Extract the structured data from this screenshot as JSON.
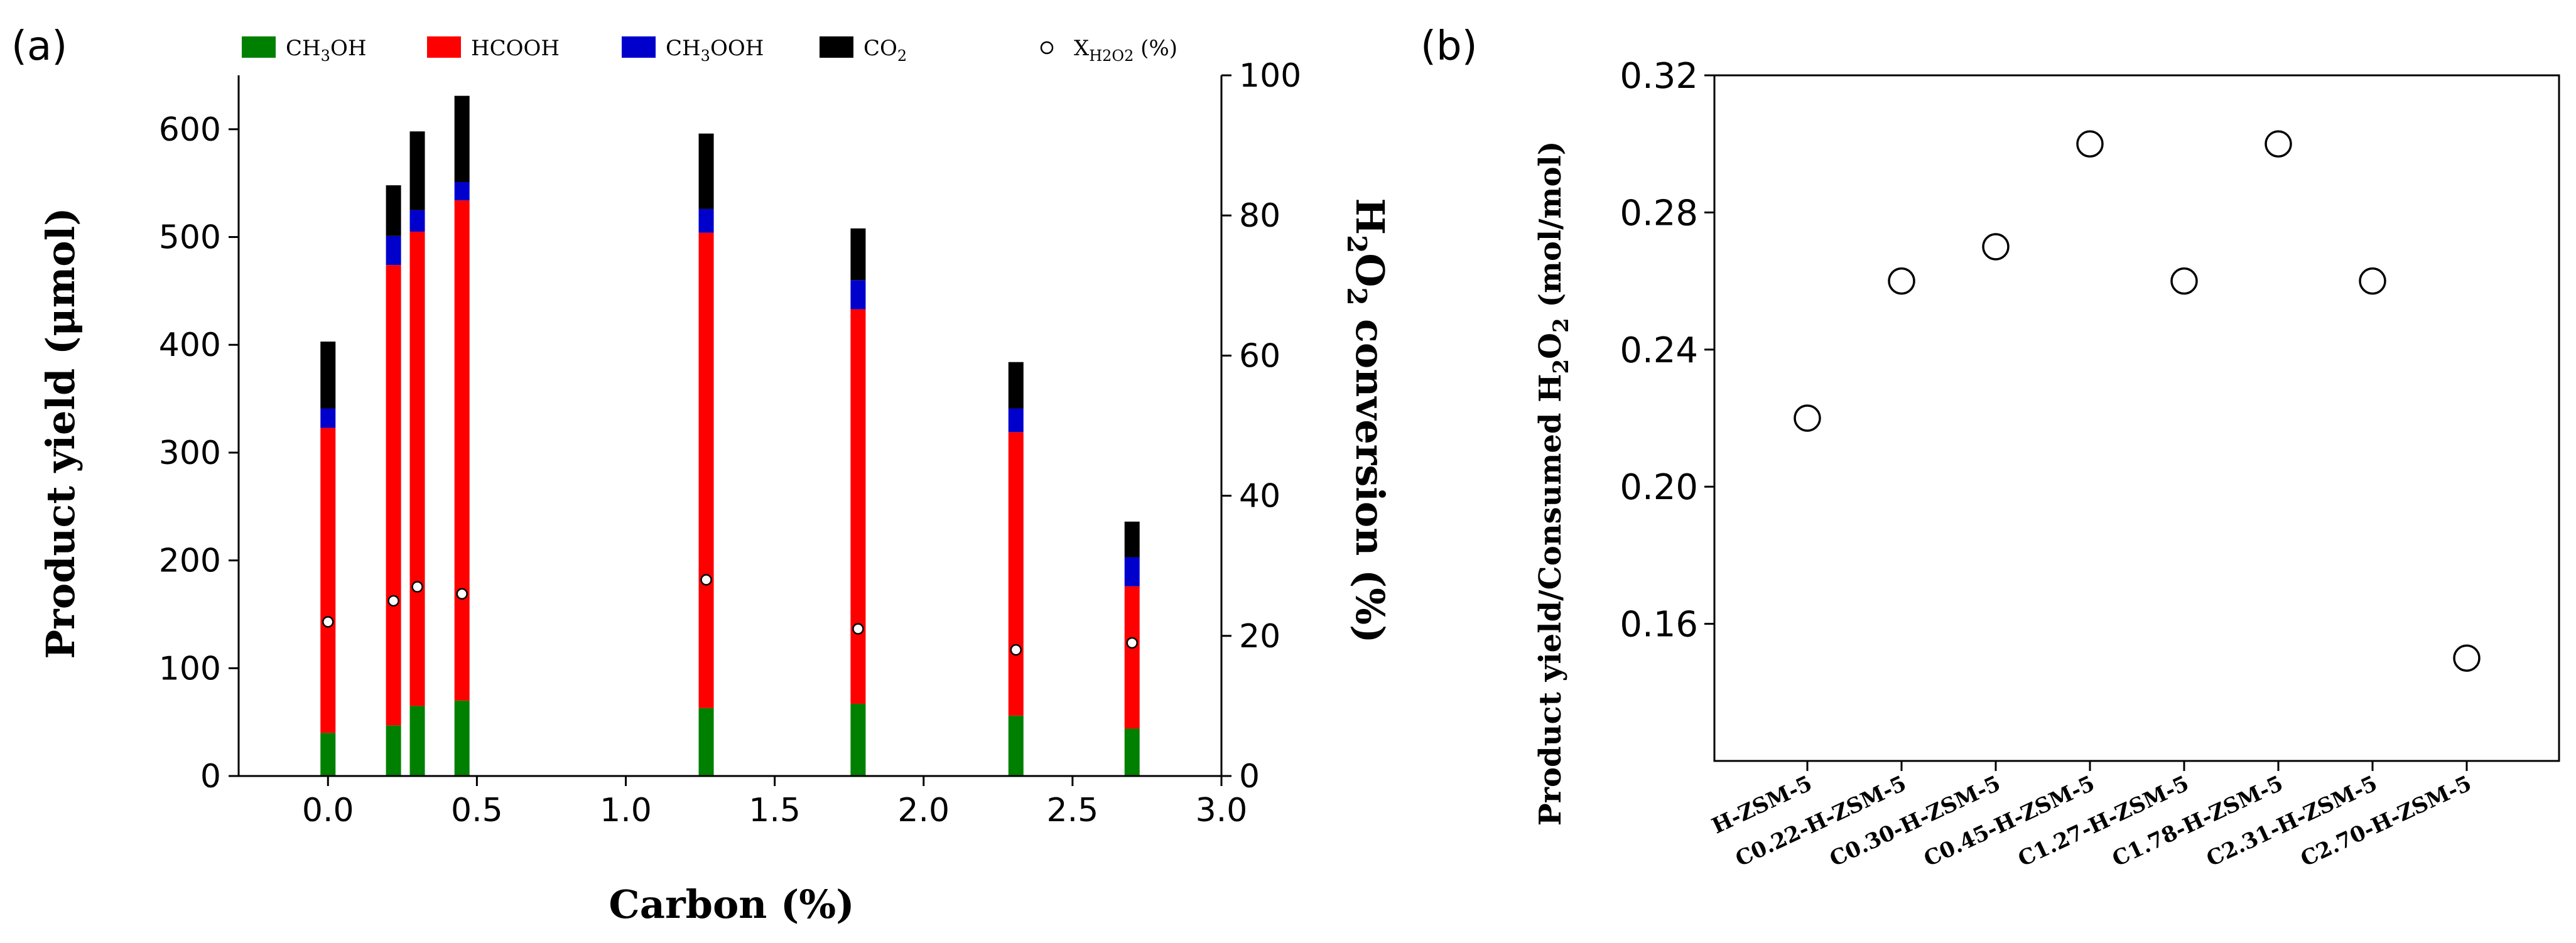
{
  "panel_a": {
    "label": "(a)",
    "chart_data": {
      "type": "bar",
      "subtype": "stacked",
      "xlabel": "Carbon (%)",
      "ylabel": "Product yield (μmol)",
      "y2label": "H2O2 conversion (%)",
      "y2label_parts": {
        "h": "H",
        "sub1": "2",
        "o": "O",
        "sub2": "2",
        "rest": " conversion (%)"
      },
      "xlim": [
        -0.3,
        3.0
      ],
      "ylim": [
        0,
        650
      ],
      "y2lim": [
        0,
        100
      ],
      "xticks": [
        0.0,
        0.5,
        1.0,
        1.5,
        2.0,
        2.5,
        3.0
      ],
      "xtick_labels": [
        "0.0",
        "0.5",
        "1.0",
        "1.5",
        "2.0",
        "2.5",
        "3.0"
      ],
      "yticks": [
        0,
        100,
        200,
        300,
        400,
        500,
        600
      ],
      "y2ticks": [
        0,
        20,
        40,
        60,
        80,
        100
      ],
      "x": [
        0.0,
        0.22,
        0.3,
        0.45,
        1.27,
        1.78,
        2.31,
        2.7
      ],
      "series": [
        {
          "name": "CH3OH",
          "color": "#008000",
          "values": [
            40,
            47,
            65,
            70,
            63,
            67,
            56,
            44
          ]
        },
        {
          "name": "HCOOH",
          "color": "#ff0000",
          "values": [
            283,
            427,
            440,
            464,
            441,
            366,
            263,
            132
          ]
        },
        {
          "name": "CH3OOH",
          "color": "#0000cc",
          "values": [
            18,
            27,
            20,
            17,
            22,
            27,
            22,
            27
          ]
        },
        {
          "name": "CO2",
          "color": "#000000",
          "values": [
            62,
            47,
            73,
            80,
            70,
            48,
            43,
            33
          ]
        }
      ],
      "conversion": {
        "name": "XH2O2 (%)",
        "axis": "right",
        "values": [
          22,
          25,
          27,
          26,
          28,
          21,
          18,
          19
        ]
      },
      "legend_position": "top"
    },
    "legend": [
      {
        "main": "CH",
        "sub": "3",
        "tail": "OH",
        "color": "#008000",
        "marker": "box"
      },
      {
        "main": "HCOOH",
        "sub": "",
        "tail": "",
        "color": "#ff0000",
        "marker": "box"
      },
      {
        "main": "CH",
        "sub": "3",
        "tail": "OOH",
        "color": "#0000cc",
        "marker": "box"
      },
      {
        "main": "CO",
        "sub": "2",
        "tail": "",
        "color": "#000000",
        "marker": "box"
      },
      {
        "main": "X",
        "sub": "H2O2",
        "tail": " (%)",
        "color": "#ffffff",
        "marker": "circle"
      }
    ]
  },
  "panel_b": {
    "label": "(b)",
    "chart_data": {
      "type": "scatter",
      "ylabel": "Product yield/Consumed H2O2 (mol/mol)",
      "ylabel_parts": {
        "before": "Product yield/Consumed H",
        "sub1": "2",
        "o": "O",
        "sub2": "2",
        "after": " (mol/mol)"
      },
      "categories": [
        "H-ZSM-5",
        "C0.22-H-ZSM-5",
        "C0.30-H-ZSM-5",
        "C0.45-H-ZSM-5",
        "C1.27-H-ZSM-5",
        "C1.78-H-ZSM-5",
        "C2.31-H-ZSM-5",
        "C2.70-H-ZSM-5"
      ],
      "values": [
        0.22,
        0.26,
        0.27,
        0.3,
        0.26,
        0.3,
        0.26,
        0.15
      ],
      "ylim": [
        0.12,
        0.32
      ],
      "yticks": [
        0.16,
        0.2,
        0.24,
        0.28,
        0.32
      ],
      "ytick_labels": [
        "0.16",
        "0.20",
        "0.24",
        "0.28",
        "0.32"
      ]
    }
  }
}
